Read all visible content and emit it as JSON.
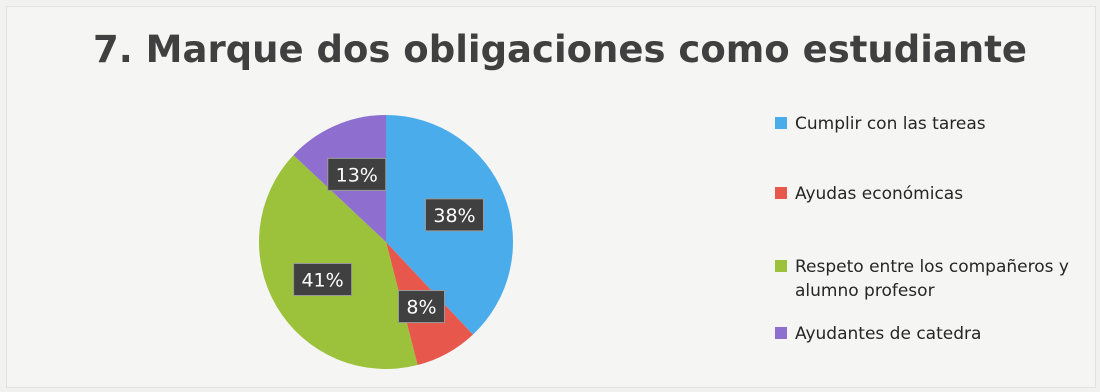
{
  "chart_data": {
    "type": "pie",
    "title": "7. Marque dos obligaciones como estudiante",
    "categories": [
      "Cumplir con las tareas",
      "Ayudas económicas",
      "Respeto entre los compañeros y alumno profesor",
      "Ayudantes de catedra"
    ],
    "legend_lines": [
      [
        "Cumplir con las tareas"
      ],
      [
        "Ayudas económicas"
      ],
      [
        "Respeto entre los compañeros y",
        "alumno profesor"
      ],
      [
        "Ayudantes de catedra"
      ]
    ],
    "values": [
      38,
      8,
      41,
      13
    ],
    "data_labels": [
      "38%",
      "8%",
      "41%",
      "13%"
    ],
    "colors": [
      "#4bacec",
      "#e8574c",
      "#9bc23a",
      "#8e6fcf"
    ],
    "legend": "right"
  }
}
